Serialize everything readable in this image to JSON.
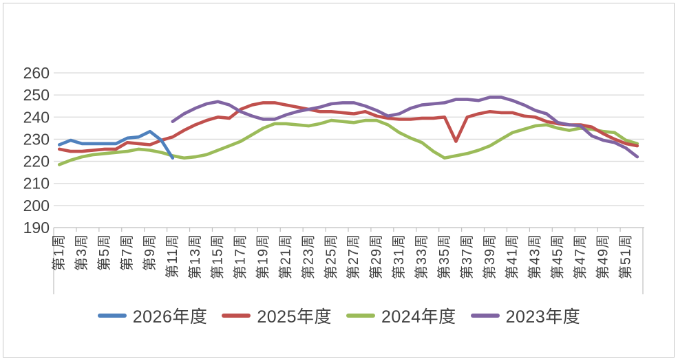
{
  "chart_data": {
    "type": "line",
    "title": "",
    "grid": true,
    "legend_position": "bottom",
    "x_axis": {
      "weeks": 52,
      "tick_weeks": [
        1,
        3,
        5,
        7,
        9,
        11,
        13,
        15,
        17,
        19,
        21,
        23,
        25,
        27,
        29,
        31,
        33,
        35,
        37,
        39,
        41,
        43,
        45,
        47,
        49,
        51
      ],
      "tick_labels": [
        "第1周",
        "第3周",
        "第5周",
        "第7周",
        "第9周",
        "第11周",
        "第13周",
        "第15周",
        "第17周",
        "第19周",
        "第21周",
        "第23周",
        "第25周",
        "第27周",
        "第29周",
        "第31周",
        "第33周",
        "第35周",
        "第37周",
        "第39周",
        "第41周",
        "第43周",
        "第45周",
        "第47周",
        "第49周",
        "第51周"
      ]
    },
    "y_axis": {
      "min": 190,
      "max": 260,
      "step": 10,
      "ticks": [
        190,
        200,
        210,
        220,
        230,
        240,
        250,
        260
      ]
    },
    "colors": {
      "grid": "#d9d9d9",
      "axis": "#bfbfbf",
      "text": "#404040"
    },
    "series": [
      {
        "name": "2026年度",
        "color": "#4F81BD",
        "start_week": 1,
        "values": [
          227.5,
          229.5,
          228,
          228,
          228,
          228,
          230.5,
          231,
          233.5,
          229.5,
          221.5
        ]
      },
      {
        "name": "2025年度",
        "color": "#C0504D",
        "start_week": 1,
        "values": [
          225.5,
          224.5,
          224.5,
          225,
          225.5,
          225.5,
          228.5,
          228,
          227.5,
          229.5,
          231,
          234,
          236.5,
          238.5,
          240,
          239.5,
          243.5,
          245.5,
          246.5,
          246.5,
          245.5,
          244.5,
          243.5,
          242.5,
          242.5,
          242,
          241.5,
          242.5,
          240.5,
          239.5,
          239,
          239,
          239.5,
          239.5,
          240,
          229,
          240,
          241.5,
          242.5,
          242,
          242,
          240.5,
          240,
          238,
          237,
          236.5,
          236.5,
          235.5,
          232.5,
          230,
          228,
          227
        ]
      },
      {
        "name": "2024年度",
        "color": "#9BBB59",
        "start_week": 1,
        "values": [
          218.5,
          220.5,
          222,
          223,
          223.5,
          224,
          224.5,
          225.5,
          225,
          224,
          222.5,
          221.5,
          222,
          223,
          225,
          227,
          229,
          232,
          235,
          237,
          237,
          236.5,
          236,
          237,
          238.5,
          238,
          237.5,
          238.5,
          238.5,
          236.5,
          233,
          230.5,
          228.5,
          224.5,
          221.5,
          222.5,
          223.5,
          225,
          227,
          230,
          233,
          234.5,
          236,
          236.5,
          235,
          234,
          235,
          234.5,
          233.5,
          233,
          229.5,
          228
        ]
      },
      {
        "name": "2023年度",
        "color": "#8064A2",
        "start_week": 11,
        "values": [
          238,
          241.5,
          244,
          246,
          247,
          245.5,
          242.5,
          240.5,
          239,
          239,
          241,
          242.5,
          243.5,
          244.5,
          246,
          246.5,
          246.5,
          245,
          243,
          240.5,
          241.5,
          244,
          245.5,
          246,
          246.5,
          248,
          248,
          247.5,
          249,
          249,
          247.5,
          245.5,
          243,
          241.5,
          237.5,
          236.5,
          236,
          231.5,
          229.5,
          228.5,
          226,
          222
        ]
      }
    ]
  },
  "legend": {
    "items": [
      {
        "label": "2026年度"
      },
      {
        "label": "2025年度"
      },
      {
        "label": "2024年度"
      },
      {
        "label": "2023年度"
      }
    ]
  }
}
